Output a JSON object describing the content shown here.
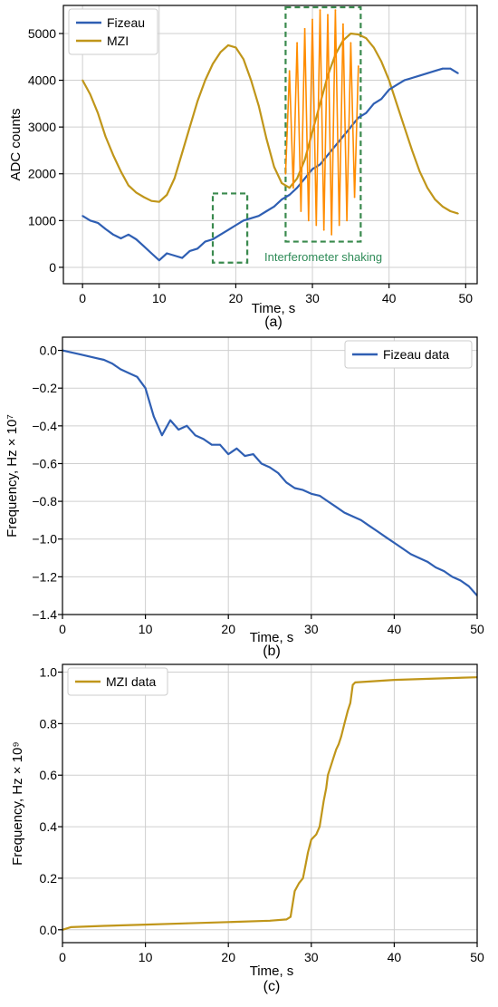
{
  "colors": {
    "fizeau": "#2f5fb3",
    "mzi": "#c0961a",
    "shaking": "#ff8c00",
    "box": "#3a8a4e",
    "annotation": "#2e8b57"
  },
  "chart_data": [
    {
      "type": "line",
      "caption": "(a)",
      "xlabel": "Time, s",
      "ylabel": "ADC counts",
      "xlim": [
        -2.5,
        51.5
      ],
      "ylim": [
        -350,
        5600
      ],
      "xticks": [
        0,
        10,
        20,
        30,
        40,
        50
      ],
      "yticks": [
        0,
        1000,
        2000,
        3000,
        4000,
        5000
      ],
      "grid": true,
      "legend_position": "top-left",
      "annotation": {
        "text": "Interferometer shaking"
      },
      "boxes": [
        {
          "x0": 17,
          "x1": 21.5,
          "y0": 100,
          "y1": 1580
        },
        {
          "x0": 26.5,
          "x1": 36.3,
          "y0": 550,
          "y1": 5560
        }
      ],
      "series": [
        {
          "name": "Fizeau",
          "x": [
            0,
            1,
            2,
            3,
            4,
            5,
            6,
            7,
            8,
            9,
            10,
            11,
            12,
            13,
            14,
            15,
            16,
            17,
            18,
            19,
            20,
            21,
            22,
            23,
            24,
            25,
            26,
            27,
            28,
            29,
            30,
            31,
            32,
            33,
            34,
            35,
            36,
            37,
            38,
            39,
            40,
            41,
            42,
            43,
            44,
            45,
            46,
            47,
            48,
            49
          ],
          "y": [
            1100,
            1000,
            950,
            820,
            700,
            620,
            700,
            600,
            450,
            300,
            150,
            300,
            250,
            200,
            350,
            400,
            550,
            600,
            700,
            800,
            900,
            1000,
            1050,
            1100,
            1200,
            1300,
            1450,
            1550,
            1700,
            1900,
            2100,
            2200,
            2400,
            2600,
            2800,
            3000,
            3200,
            3300,
            3500,
            3600,
            3800,
            3900,
            4000,
            4050,
            4100,
            4150,
            4200,
            4250,
            4250,
            4150
          ]
        },
        {
          "name": "MZI",
          "x": [
            0,
            1,
            2,
            3,
            4,
            5,
            6,
            7,
            8,
            9,
            10,
            11,
            12,
            13,
            14,
            15,
            16,
            17,
            18,
            19,
            20,
            21,
            22,
            23,
            24,
            25,
            26,
            27,
            28,
            29,
            30,
            31,
            32,
            33,
            34,
            35,
            36,
            37,
            38,
            39,
            40,
            41,
            42,
            43,
            44,
            45,
            46,
            47,
            48,
            49
          ],
          "y": [
            4000,
            3700,
            3300,
            2800,
            2400,
            2050,
            1750,
            1600,
            1500,
            1420,
            1400,
            1550,
            1900,
            2450,
            3000,
            3550,
            4000,
            4350,
            4600,
            4750,
            4700,
            4450,
            4000,
            3450,
            2750,
            2150,
            1800,
            1700,
            1900,
            2300,
            2900,
            3500,
            4100,
            4550,
            4850,
            5000,
            4980,
            4900,
            4700,
            4400,
            4000,
            3500,
            3000,
            2500,
            2050,
            1700,
            1450,
            1300,
            1200,
            1150
          ]
        },
        {
          "name": "",
          "x": [
            26.5,
            27,
            27.5,
            28,
            28.5,
            29,
            29.5,
            30,
            30.5,
            31,
            31.5,
            32,
            32.5,
            33,
            33.5,
            34,
            34.5,
            35,
            35.5,
            36
          ],
          "y": [
            2000,
            4200,
            1700,
            4800,
            1200,
            5100,
            1000,
            5300,
            900,
            5500,
            800,
            5400,
            700,
            5500,
            900,
            5200,
            1000,
            4800,
            1500,
            4300
          ]
        }
      ]
    },
    {
      "type": "line",
      "caption": "(b)",
      "xlabel": "Time, s",
      "ylabel": "Frequency, Hz × 10⁷",
      "xlim": [
        0,
        50
      ],
      "ylim": [
        -1.4,
        0.07
      ],
      "xticks": [
        0,
        10,
        20,
        30,
        40,
        50
      ],
      "yticks": [
        -1.4,
        -1.2,
        -1.0,
        -0.8,
        -0.6,
        -0.4,
        -0.2,
        0.0
      ],
      "grid": true,
      "legend_position": "top-right",
      "series": [
        {
          "name": "Fizeau data",
          "x": [
            0,
            1,
            2,
            3,
            4,
            5,
            6,
            7,
            8,
            9,
            10,
            11,
            12,
            13,
            14,
            15,
            16,
            17,
            18,
            19,
            20,
            21,
            22,
            23,
            24,
            25,
            26,
            27,
            28,
            29,
            30,
            31,
            32,
            33,
            34,
            35,
            36,
            37,
            38,
            39,
            40,
            41,
            42,
            43,
            44,
            45,
            46,
            47,
            48,
            49,
            50
          ],
          "y": [
            0.0,
            -0.01,
            -0.02,
            -0.03,
            -0.04,
            -0.05,
            -0.07,
            -0.1,
            -0.12,
            -0.14,
            -0.2,
            -0.35,
            -0.45,
            -0.37,
            -0.42,
            -0.4,
            -0.45,
            -0.47,
            -0.5,
            -0.5,
            -0.55,
            -0.52,
            -0.56,
            -0.55,
            -0.6,
            -0.62,
            -0.65,
            -0.7,
            -0.73,
            -0.74,
            -0.76,
            -0.77,
            -0.8,
            -0.83,
            -0.86,
            -0.88,
            -0.9,
            -0.93,
            -0.96,
            -0.99,
            -1.02,
            -1.05,
            -1.08,
            -1.1,
            -1.12,
            -1.15,
            -1.17,
            -1.2,
            -1.22,
            -1.25,
            -1.3
          ]
        }
      ]
    },
    {
      "type": "line",
      "caption": "(c)",
      "xlabel": "Time, s",
      "ylabel": "Frequency, Hz × 10⁹",
      "xlim": [
        0,
        50
      ],
      "ylim": [
        -0.05,
        1.03
      ],
      "xticks": [
        0,
        10,
        20,
        30,
        40,
        50
      ],
      "yticks": [
        0.0,
        0.2,
        0.4,
        0.6,
        0.8,
        1.0
      ],
      "grid": true,
      "legend_position": "top-left",
      "series": [
        {
          "name": "MZI data",
          "x": [
            0,
            1,
            5,
            10,
            15,
            20,
            25,
            27,
            27.5,
            28,
            28.5,
            29,
            29.3,
            29.6,
            30,
            30.3,
            30.6,
            31,
            31.5,
            31.8,
            32,
            32.3,
            32.6,
            33,
            33.3,
            33.6,
            34,
            34.4,
            34.7,
            35,
            35.3,
            40,
            45,
            50
          ],
          "y": [
            0.0,
            0.01,
            0.015,
            0.02,
            0.025,
            0.03,
            0.035,
            0.04,
            0.05,
            0.15,
            0.18,
            0.2,
            0.25,
            0.3,
            0.35,
            0.36,
            0.37,
            0.4,
            0.5,
            0.55,
            0.6,
            0.63,
            0.66,
            0.7,
            0.72,
            0.75,
            0.8,
            0.85,
            0.88,
            0.95,
            0.96,
            0.97,
            0.975,
            0.98
          ]
        }
      ]
    }
  ]
}
